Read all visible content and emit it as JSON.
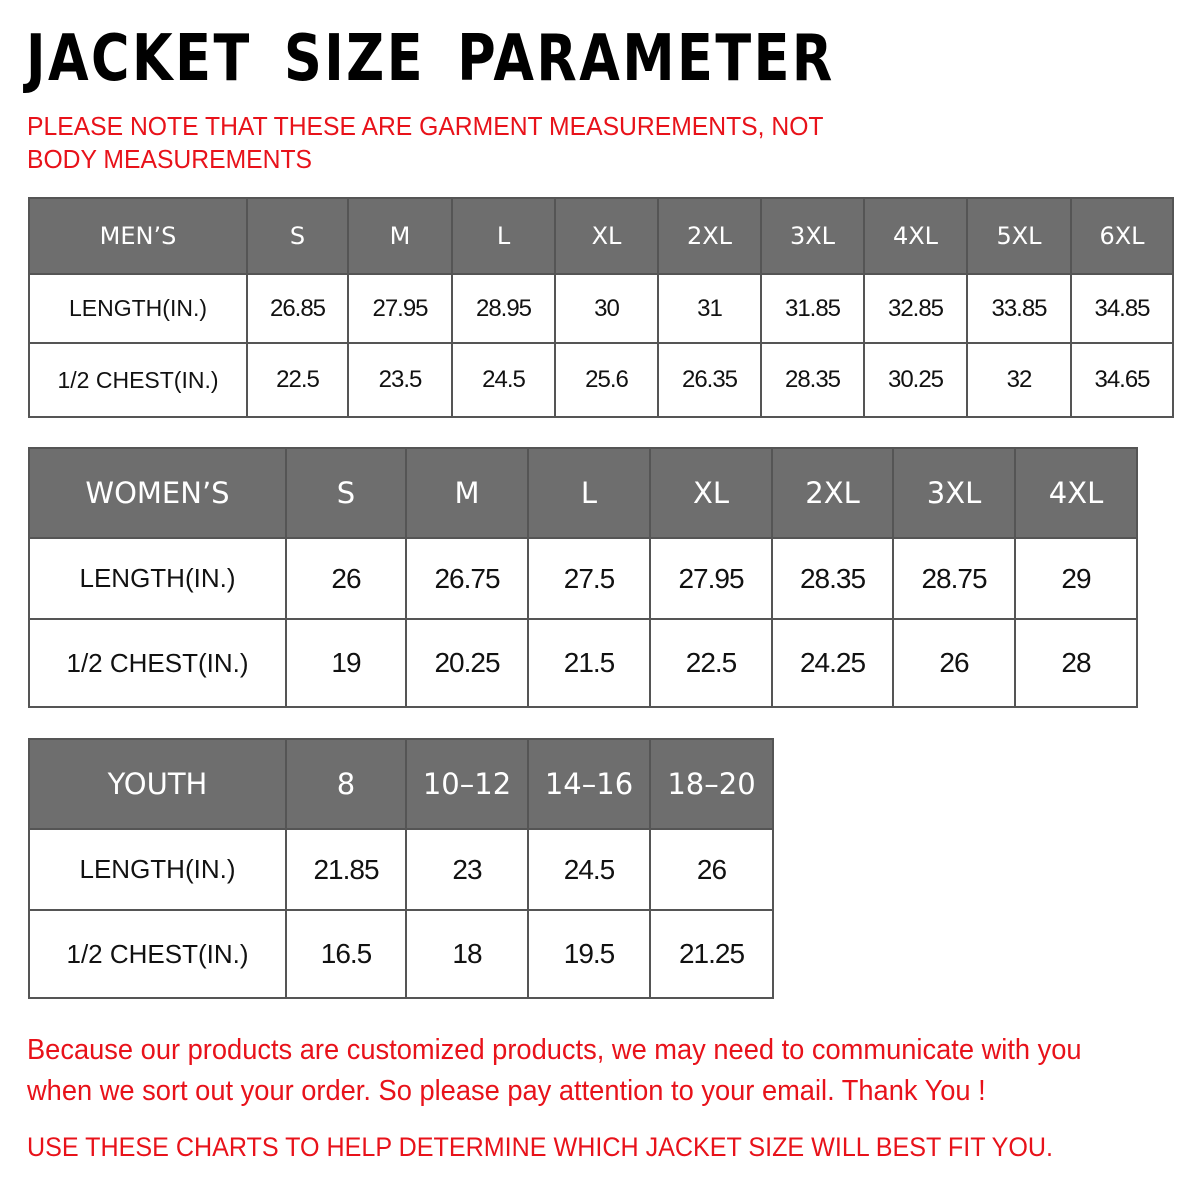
{
  "title": "JACKET SIZE PARAMETER",
  "note": "PLEASE NOTE THAT THESE ARE GARMENT MEASUREMENTS, NOT BODY MEASUREMENTS",
  "colors": {
    "header_bg": "#6e6e6e",
    "accent_red": "#e8121a"
  },
  "tables": [
    {
      "id": "mens",
      "header": [
        "MEN’S",
        "S",
        "M",
        "L",
        "XL",
        "2XL",
        "3XL",
        "4XL",
        "5XL",
        "6XL"
      ],
      "rows": [
        [
          "LENGTH(IN.)",
          "26.85",
          "27.95",
          "28.95",
          "30",
          "31",
          "31.85",
          "32.85",
          "33.85",
          "34.85"
        ],
        [
          "1/2 CHEST(IN.)",
          "22.5",
          "23.5",
          "24.5",
          "25.6",
          "26.35",
          "28.35",
          "30.25",
          "32",
          "34.65"
        ]
      ]
    },
    {
      "id": "womens",
      "header": [
        "WOMEN’S",
        "S",
        "M",
        "L",
        "XL",
        "2XL",
        "3XL",
        "4XL"
      ],
      "rows": [
        [
          "LENGTH(IN.)",
          "26",
          "26.75",
          "27.5",
          "27.95",
          "28.35",
          "28.75",
          "29"
        ],
        [
          "1/2 CHEST(IN.)",
          "19",
          "20.25",
          "21.5",
          "22.5",
          "24.25",
          "26",
          "28"
        ]
      ]
    },
    {
      "id": "youth",
      "header": [
        "YOUTH",
        "8",
        "10–12",
        "14–16",
        "18–20"
      ],
      "rows": [
        [
          "LENGTH(IN.)",
          "21.85",
          "23",
          "24.5",
          "26"
        ],
        [
          "1/2 CHEST(IN.)",
          "16.5",
          "18",
          "19.5",
          "21.25"
        ]
      ]
    }
  ],
  "footer": {
    "line1": "Because our products are customized products, we may need to communicate with you",
    "line2": "when we sort out your order. So please pay attention to your email. Thank You !",
    "line3": "USE THESE CHARTS TO HELP DETERMINE WHICH JACKET SIZE WILL BEST FIT YOU."
  }
}
